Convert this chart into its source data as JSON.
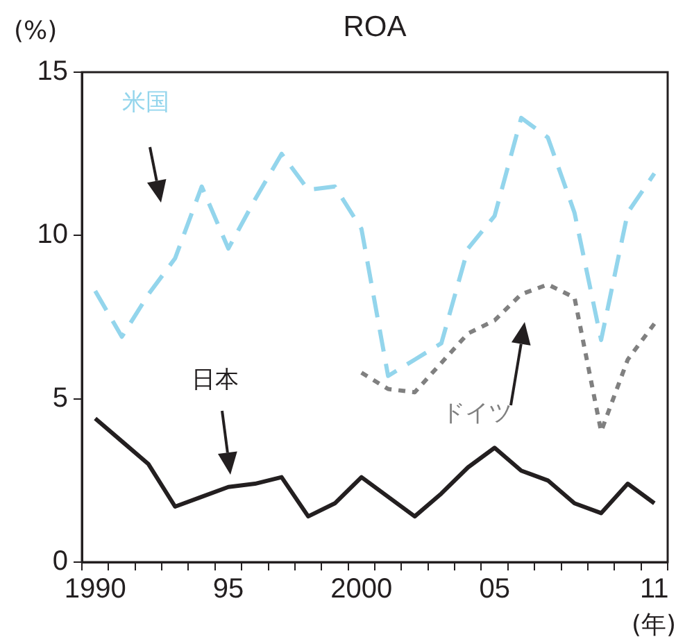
{
  "chart_data": {
    "type": "line",
    "title": "ROA",
    "ylabel": "(%)",
    "xlabel": "(年)",
    "categories": [
      "1990",
      null,
      null,
      null,
      null,
      "95",
      null,
      null,
      null,
      null,
      "2000",
      null,
      null,
      null,
      null,
      "05",
      null,
      null,
      null,
      null,
      null,
      "11"
    ],
    "ylim": [
      0,
      15
    ],
    "yticks": [
      0,
      5,
      10,
      15
    ],
    "grid": false,
    "legend": false,
    "marker": "none",
    "series": [
      {
        "name": "米国",
        "color": "#93d5ec",
        "line_style": "dashed",
        "values": [
          8.3,
          6.9,
          8.2,
          9.3,
          11.5,
          9.6,
          11.1,
          12.5,
          11.4,
          11.5,
          10.2,
          5.7,
          6.2,
          6.7,
          9.6,
          10.6,
          13.6,
          13.0,
          10.7,
          6.8,
          10.7,
          11.9
        ]
      },
      {
        "name": "日本",
        "color": "#231f20",
        "line_style": "solid",
        "values": [
          4.4,
          3.7,
          3.0,
          1.7,
          2.0,
          2.3,
          2.4,
          2.6,
          1.4,
          1.8,
          2.6,
          2.0,
          1.4,
          2.1,
          2.9,
          3.5,
          2.8,
          2.5,
          1.8,
          1.5,
          2.4,
          1.8
        ]
      },
      {
        "name": "ドイツ",
        "color": "#808080",
        "line_style": "dotted",
        "values": [
          null,
          null,
          null,
          null,
          null,
          null,
          null,
          null,
          null,
          null,
          5.8,
          5.3,
          5.2,
          6.1,
          7.0,
          7.4,
          8.2,
          8.5,
          8.1,
          4.0,
          6.2,
          7.3
        ]
      }
    ]
  }
}
